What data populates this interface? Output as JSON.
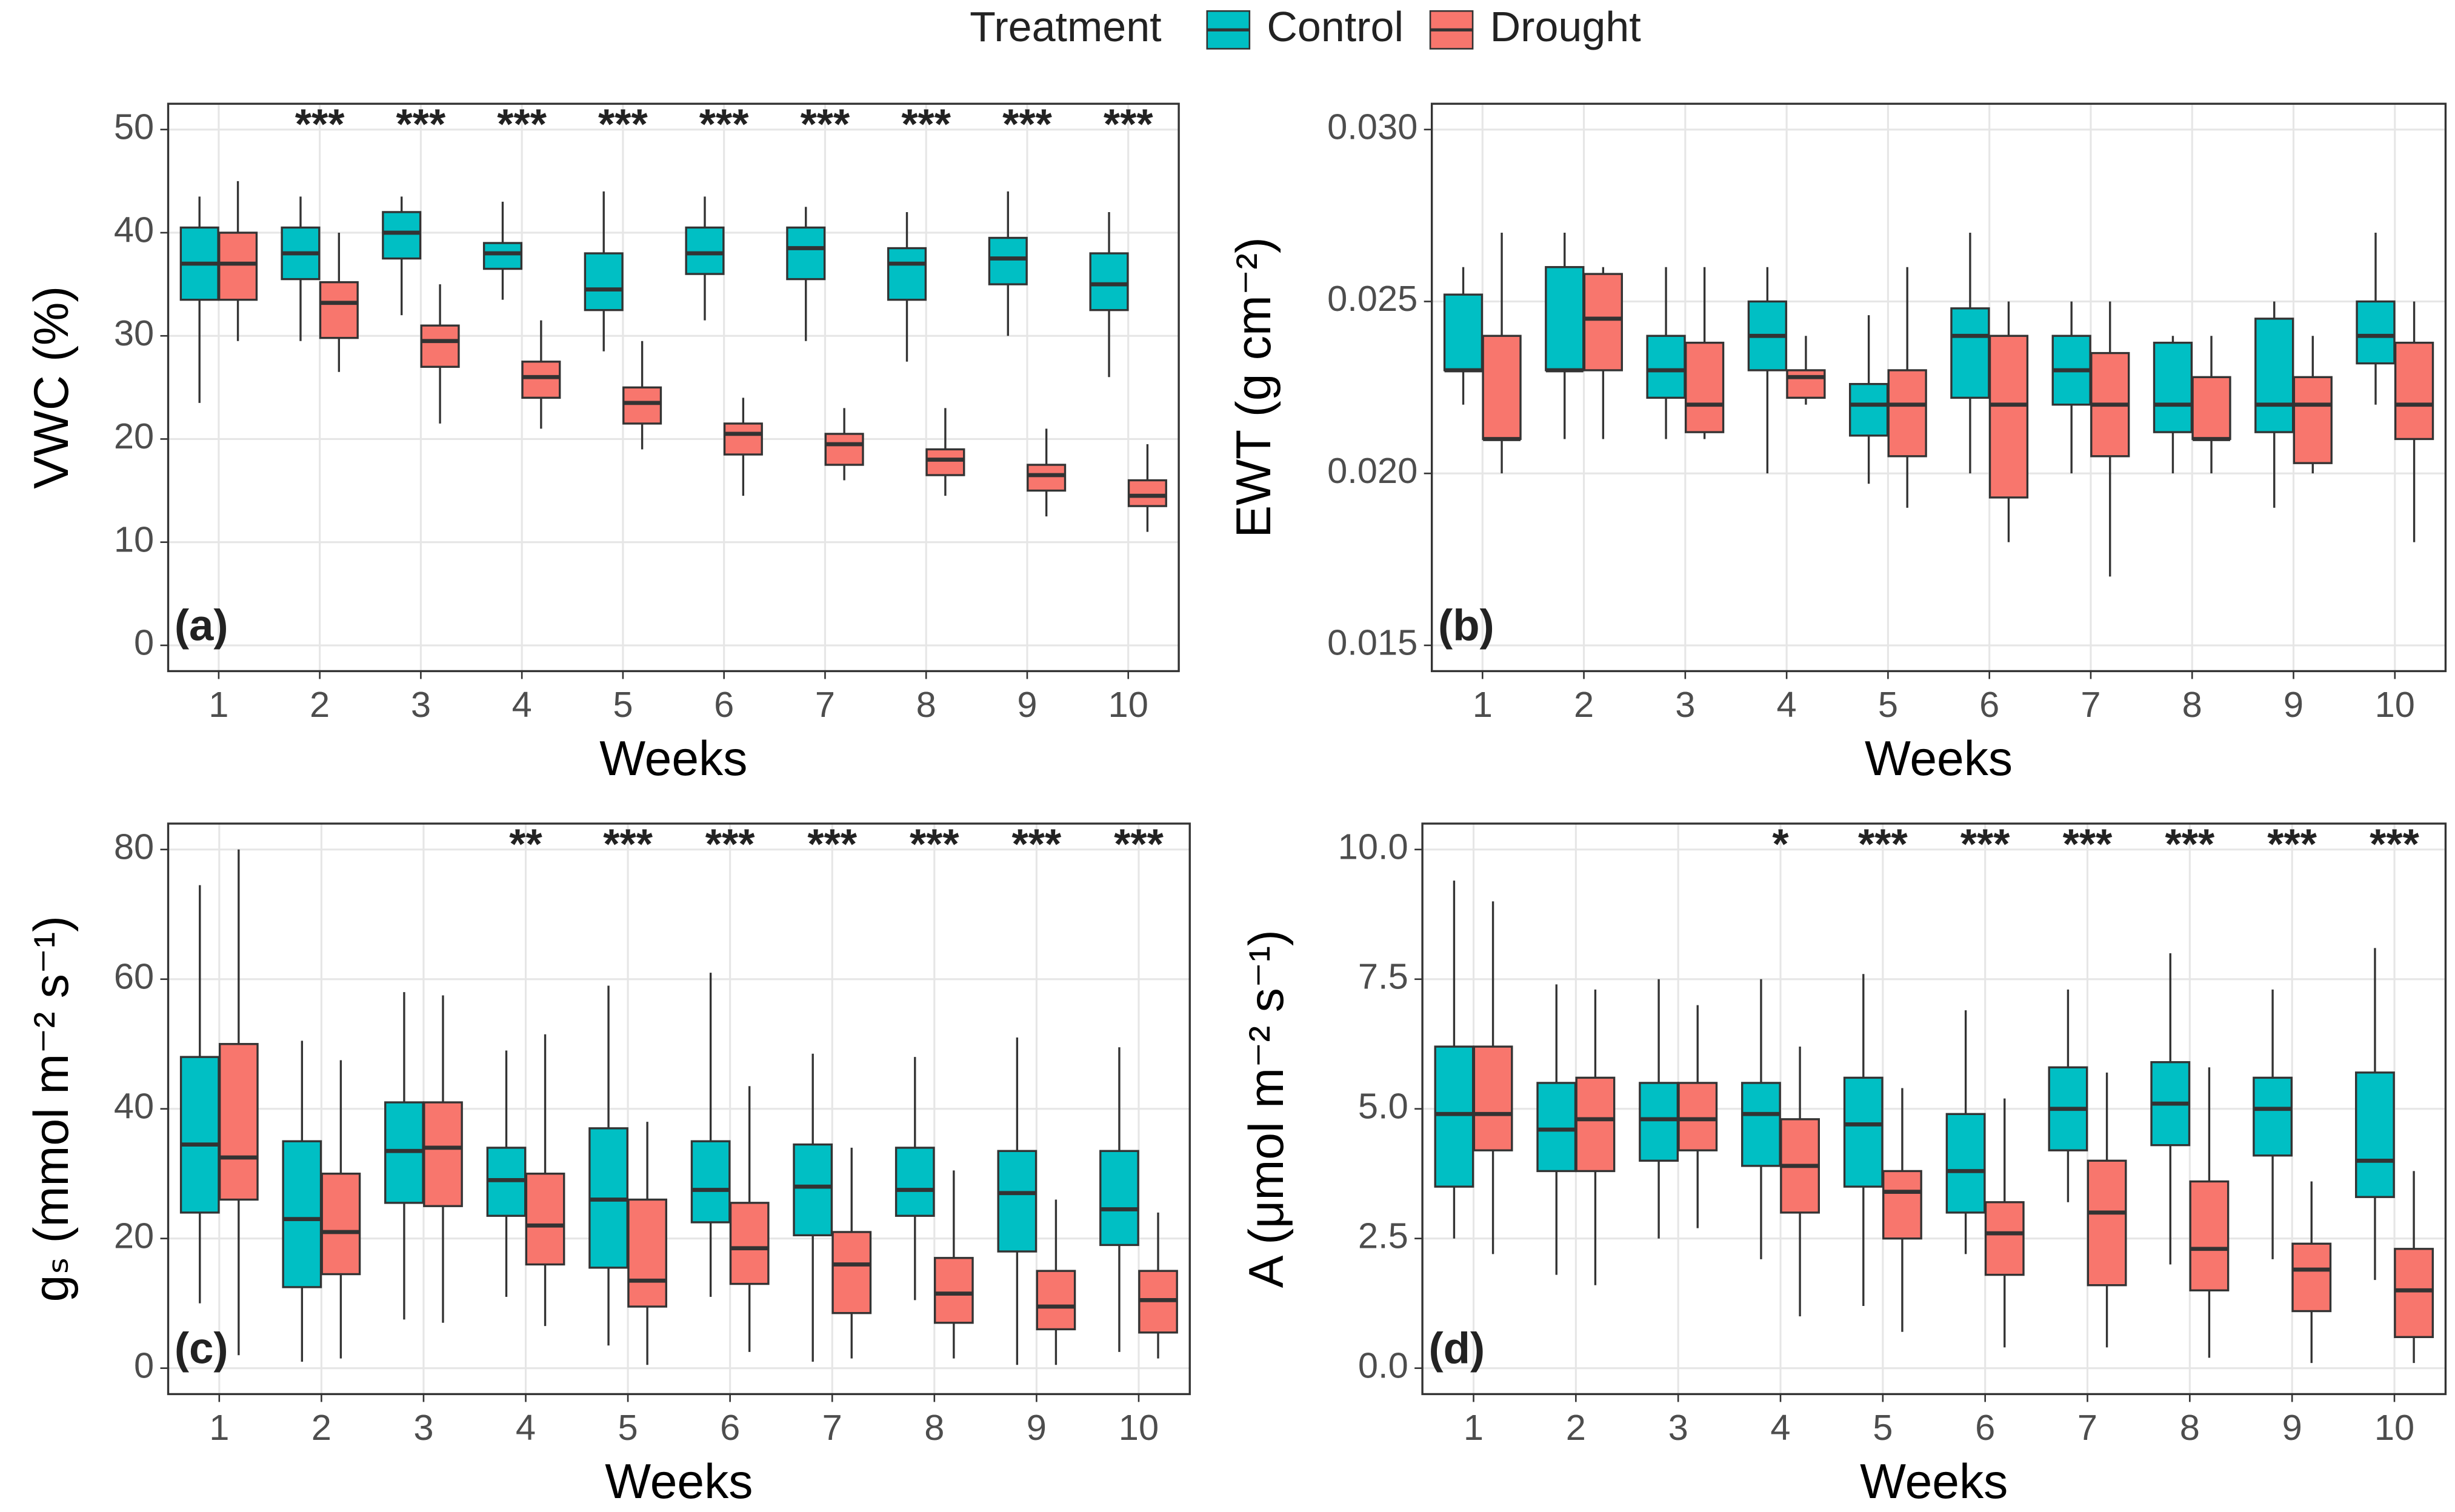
{
  "legend": {
    "title": "Treatment",
    "entries": [
      {
        "name": "Control",
        "color": "#00BFC4"
      },
      {
        "name": "Drought",
        "color": "#F8766D"
      }
    ]
  },
  "chart_data": [
    {
      "type": "box",
      "panel_label": "(a)",
      "xlabel": "Weeks",
      "ylabel": "VWC (%)",
      "grid": true,
      "categories": [
        "1",
        "2",
        "3",
        "4",
        "5",
        "6",
        "7",
        "8",
        "9",
        "10"
      ],
      "annotations": [
        null,
        "***",
        "***",
        "***",
        "***",
        "***",
        "***",
        "***",
        "***",
        "***"
      ],
      "ylim": [
        -2.5,
        52.5
      ],
      "yticks": [
        0,
        10,
        20,
        30,
        40,
        50
      ],
      "series": [
        {
          "min": [
            23.5,
            29.5,
            32,
            33.5,
            28.5,
            31.5,
            29.5,
            27.5,
            30,
            26
          ],
          "q1": [
            33.5,
            35.5,
            37.5,
            36.5,
            32.5,
            36,
            35.5,
            33.5,
            35,
            32.5
          ],
          "median": [
            37,
            38,
            40,
            38,
            34.5,
            38,
            38.5,
            37,
            37.5,
            35
          ],
          "q3": [
            40.5,
            40.5,
            42,
            39,
            38,
            40.5,
            40.5,
            38.5,
            39.5,
            38
          ],
          "max": [
            43.5,
            43.5,
            43.5,
            43,
            44,
            43.5,
            42.5,
            42,
            44,
            42
          ]
        },
        {
          "min": [
            29.5,
            26.5,
            21.5,
            21,
            19,
            14.5,
            16,
            14.5,
            12.5,
            11
          ],
          "q1": [
            33.5,
            29.8,
            27,
            24,
            21.5,
            18.5,
            17.5,
            16.5,
            15,
            13.5
          ],
          "median": [
            37,
            33.2,
            29.5,
            26,
            23.5,
            20.5,
            19.5,
            18,
            16.5,
            14.5
          ],
          "q3": [
            40,
            35.2,
            31,
            27.5,
            25,
            21.5,
            20.5,
            19,
            17.5,
            16
          ],
          "max": [
            45,
            40,
            35,
            31.5,
            29.5,
            24,
            23,
            23,
            21,
            19.5
          ]
        }
      ]
    },
    {
      "type": "box",
      "panel_label": "(b)",
      "xlabel": "Weeks",
      "ylabel": "EWT (g cm⁻²)",
      "grid": true,
      "categories": [
        "1",
        "2",
        "3",
        "4",
        "5",
        "6",
        "7",
        "8",
        "9",
        "10"
      ],
      "ylim": [
        0.01425,
        0.03075
      ],
      "yticks": [
        {
          "value": 0.015,
          "label": "0.015"
        },
        {
          "value": 0.02,
          "label": "0.020"
        },
        {
          "value": 0.025,
          "label": "0.025"
        },
        {
          "value": 0.03,
          "label": "0.030"
        }
      ],
      "series": [
        {
          "min": [
            0.022,
            0.021,
            0.021,
            0.02,
            0.0197,
            0.02,
            0.02,
            0.02,
            0.019,
            0.022
          ],
          "q1": [
            0.023,
            0.023,
            0.0222,
            0.023,
            0.0211,
            0.0222,
            0.022,
            0.0212,
            0.0212,
            0.0232
          ],
          "median": [
            0.023,
            0.023,
            0.023,
            0.024,
            0.022,
            0.024,
            0.023,
            0.022,
            0.022,
            0.024
          ],
          "q3": [
            0.0252,
            0.026,
            0.024,
            0.025,
            0.0226,
            0.0248,
            0.024,
            0.0238,
            0.0245,
            0.025
          ],
          "max": [
            0.026,
            0.027,
            0.026,
            0.026,
            0.0246,
            0.027,
            0.025,
            0.024,
            0.025,
            0.027
          ]
        },
        {
          "min": [
            0.02,
            0.021,
            0.021,
            0.022,
            0.019,
            0.018,
            0.017,
            0.02,
            0.02,
            0.018
          ],
          "q1": [
            0.021,
            0.023,
            0.0212,
            0.0222,
            0.0205,
            0.0193,
            0.0205,
            0.021,
            0.0203,
            0.021
          ],
          "median": [
            0.021,
            0.0245,
            0.022,
            0.0228,
            0.022,
            0.022,
            0.022,
            0.021,
            0.022,
            0.022
          ],
          "q3": [
            0.024,
            0.0258,
            0.0238,
            0.023,
            0.023,
            0.024,
            0.0235,
            0.0228,
            0.0228,
            0.0238
          ],
          "max": [
            0.027,
            0.026,
            0.026,
            0.024,
            0.026,
            0.025,
            0.025,
            0.024,
            0.024,
            0.025
          ]
        }
      ]
    },
    {
      "type": "box",
      "panel_label": "(c)",
      "xlabel": "Weeks",
      "ylabel": "gₛ (mmol m⁻² s⁻¹)",
      "grid": true,
      "categories": [
        "1",
        "2",
        "3",
        "4",
        "5",
        "6",
        "7",
        "8",
        "9",
        "10"
      ],
      "annotations": [
        null,
        null,
        null,
        "**",
        "***",
        "***",
        "***",
        "***",
        "***",
        "***"
      ],
      "ylim": [
        -4,
        84
      ],
      "yticks": [
        0,
        20,
        40,
        60,
        80
      ],
      "series": [
        {
          "min": [
            10,
            1,
            7.5,
            11,
            3.5,
            11,
            1,
            10.5,
            0.5,
            2.5
          ],
          "q1": [
            24,
            12.5,
            25.5,
            23.5,
            15.5,
            22.5,
            20.5,
            23.5,
            18,
            19
          ],
          "median": [
            34.5,
            23,
            33.5,
            29,
            26,
            27.5,
            28,
            27.5,
            27,
            24.5
          ],
          "q3": [
            48,
            35,
            41,
            34,
            37,
            35,
            34.5,
            34,
            33.5,
            33.5
          ],
          "max": [
            74.5,
            50.5,
            58,
            49,
            59,
            61,
            48.5,
            48,
            51,
            49.5
          ]
        },
        {
          "min": [
            2,
            1.5,
            7,
            6.5,
            0.5,
            2.5,
            1.5,
            1.5,
            0.5,
            1.5
          ],
          "q1": [
            26,
            14.5,
            25,
            16,
            9.5,
            13,
            8.5,
            7,
            6,
            5.5
          ],
          "median": [
            32.5,
            21,
            34,
            22,
            13.5,
            18.5,
            16,
            11.5,
            9.5,
            10.5
          ],
          "q3": [
            50,
            30,
            41,
            30,
            26,
            25.5,
            21,
            17,
            15,
            15
          ],
          "max": [
            80,
            47.5,
            57.5,
            51.5,
            38,
            43.5,
            34,
            30.5,
            26,
            24
          ]
        }
      ]
    },
    {
      "type": "box",
      "panel_label": "(d)",
      "xlabel": "Weeks",
      "ylabel": "A (μmol m⁻² s⁻¹)",
      "grid": true,
      "categories": [
        "1",
        "2",
        "3",
        "4",
        "5",
        "6",
        "7",
        "8",
        "9",
        "10"
      ],
      "annotations": [
        null,
        null,
        null,
        "*",
        "***",
        "***",
        "***",
        "***",
        "***",
        "***"
      ],
      "ylim": [
        -0.5,
        10.5
      ],
      "yticks": [
        {
          "value": 0,
          "label": "0.0"
        },
        {
          "value": 2.5,
          "label": "2.5"
        },
        {
          "value": 5,
          "label": "5.0"
        },
        {
          "value": 7.5,
          "label": "7.5"
        },
        {
          "value": 10,
          "label": "10.0"
        }
      ],
      "series": [
        {
          "min": [
            2.5,
            1.8,
            2.5,
            2.1,
            1.2,
            2.2,
            3.2,
            2,
            2.1,
            1.7
          ],
          "q1": [
            3.5,
            3.8,
            4,
            3.9,
            3.5,
            3,
            4.2,
            4.3,
            4.1,
            3.3
          ],
          "median": [
            4.9,
            4.6,
            4.8,
            4.9,
            4.7,
            3.8,
            5,
            5.1,
            5,
            4
          ],
          "q3": [
            6.2,
            5.5,
            5.5,
            5.5,
            5.6,
            4.9,
            5.8,
            5.9,
            5.6,
            5.7
          ],
          "max": [
            9.4,
            7.4,
            7.5,
            7.5,
            7.6,
            6.9,
            7.3,
            8,
            7.3,
            8.1
          ]
        },
        {
          "min": [
            2.2,
            1.6,
            2.7,
            1,
            0.7,
            0.4,
            0.4,
            0.2,
            0.1,
            0.1
          ],
          "q1": [
            4.2,
            3.8,
            4.2,
            3,
            2.5,
            1.8,
            1.6,
            1.5,
            1.1,
            0.6
          ],
          "median": [
            4.9,
            4.8,
            4.8,
            3.9,
            3.4,
            2.6,
            3,
            2.3,
            1.9,
            1.5
          ],
          "q3": [
            6.2,
            5.6,
            5.5,
            4.8,
            3.8,
            3.2,
            4,
            3.6,
            2.4,
            2.3
          ],
          "max": [
            9,
            7.3,
            7,
            6.2,
            5.4,
            5.2,
            5.7,
            5.8,
            3.6,
            3.8
          ]
        }
      ]
    }
  ]
}
